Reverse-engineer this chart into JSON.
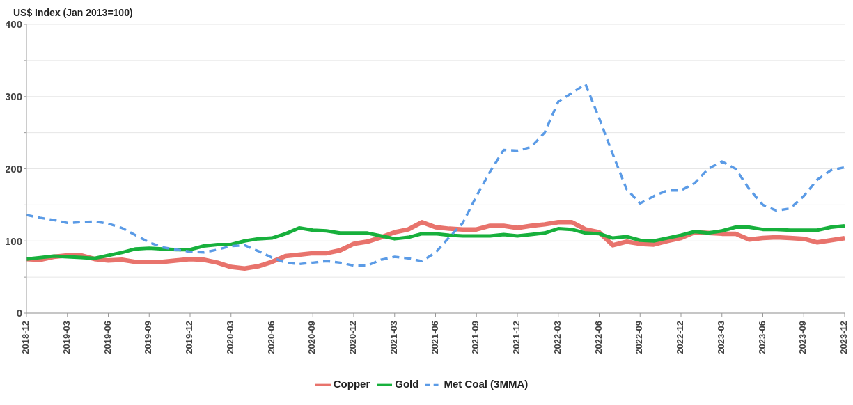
{
  "chart_data": {
    "type": "line",
    "ylabel": "US$ Index (Jan 2013=100)",
    "x": [
      "2018-12",
      "2019-01",
      "2019-02",
      "2019-03",
      "2019-04",
      "2019-05",
      "2019-06",
      "2019-07",
      "2019-08",
      "2019-09",
      "2019-10",
      "2019-11",
      "2019-12",
      "2020-01",
      "2020-02",
      "2020-03",
      "2020-04",
      "2020-05",
      "2020-06",
      "2020-07",
      "2020-08",
      "2020-09",
      "2020-10",
      "2020-11",
      "2020-12",
      "2021-01",
      "2021-02",
      "2021-03",
      "2021-04",
      "2021-05",
      "2021-06",
      "2021-07",
      "2021-08",
      "2021-09",
      "2021-10",
      "2021-11",
      "2021-12",
      "2022-01",
      "2022-02",
      "2022-03",
      "2022-04",
      "2022-05",
      "2022-06",
      "2022-07",
      "2022-08",
      "2022-09",
      "2022-10",
      "2022-11",
      "2022-12",
      "2023-01",
      "2023-02",
      "2023-03",
      "2023-04",
      "2023-05",
      "2023-06",
      "2023-07",
      "2023-08",
      "2023-09",
      "2023-10",
      "2023-11",
      "2023-12"
    ],
    "series": [
      {
        "name": "Copper",
        "color": "#e8736c",
        "line_style": "solid",
        "values": [
          75,
          74,
          78,
          80,
          80,
          75,
          73,
          74,
          71,
          71,
          71,
          73,
          75,
          74,
          70,
          64,
          62,
          65,
          71,
          79,
          81,
          83,
          83,
          87,
          96,
          99,
          105,
          112,
          116,
          126,
          119,
          117,
          116,
          116,
          121,
          121,
          118,
          121,
          123,
          126,
          126,
          116,
          112,
          94,
          99,
          96,
          95,
          100,
          104,
          112,
          111,
          110,
          110,
          102,
          104,
          105,
          104,
          103,
          98,
          101,
          104
        ]
      },
      {
        "name": "Gold",
        "color": "#17b03c",
        "line_style": "solid",
        "values": [
          75,
          77,
          79,
          78,
          77,
          76,
          80,
          84,
          89,
          90,
          89,
          88,
          88,
          93,
          95,
          95,
          100,
          103,
          104,
          110,
          118,
          115,
          114,
          111,
          111,
          111,
          107,
          103,
          105,
          110,
          110,
          108,
          107,
          107,
          107,
          109,
          107,
          109,
          111,
          117,
          116,
          111,
          110,
          104,
          106,
          101,
          100,
          104,
          108,
          113,
          111,
          114,
          119,
          119,
          116,
          116,
          115,
          115,
          115,
          119,
          121
        ]
      },
      {
        "name": "Met Coal (3MMA)",
        "color": "#5b9be6",
        "line_style": "dashed",
        "values": [
          136,
          132,
          129,
          125,
          126,
          127,
          124,
          118,
          108,
          98,
          91,
          88,
          85,
          84,
          88,
          93,
          94,
          86,
          77,
          70,
          68,
          70,
          72,
          70,
          66,
          66,
          74,
          78,
          76,
          72,
          84,
          105,
          125,
          162,
          196,
          226,
          225,
          230,
          250,
          293,
          305,
          317,
          270,
          220,
          172,
          152,
          162,
          170,
          170,
          180,
          200,
          210,
          200,
          172,
          150,
          142,
          145,
          162,
          185,
          198,
          202
        ]
      }
    ],
    "xlim": [
      "2018-12",
      "2023-12"
    ],
    "xticks": [
      "2018-12",
      "2019-03",
      "2019-06",
      "2019-09",
      "2019-12",
      "2020-03",
      "2020-06",
      "2020-09",
      "2020-12",
      "2021-03",
      "2021-06",
      "2021-09",
      "2021-12",
      "2022-03",
      "2022-06",
      "2022-09",
      "2022-12",
      "2023-03",
      "2023-06",
      "2023-09",
      "2023-12"
    ],
    "ylim": [
      0,
      400
    ],
    "yticks": [
      0,
      {
        "value": 50,
        "label": null
      },
      100,
      {
        "value": 150,
        "label": null
      },
      200,
      {
        "value": 250,
        "label": null
      },
      300,
      {
        "value": 350,
        "label": null
      },
      400
    ],
    "grid": "y",
    "legend": "bottom",
    "marker": "none"
  }
}
